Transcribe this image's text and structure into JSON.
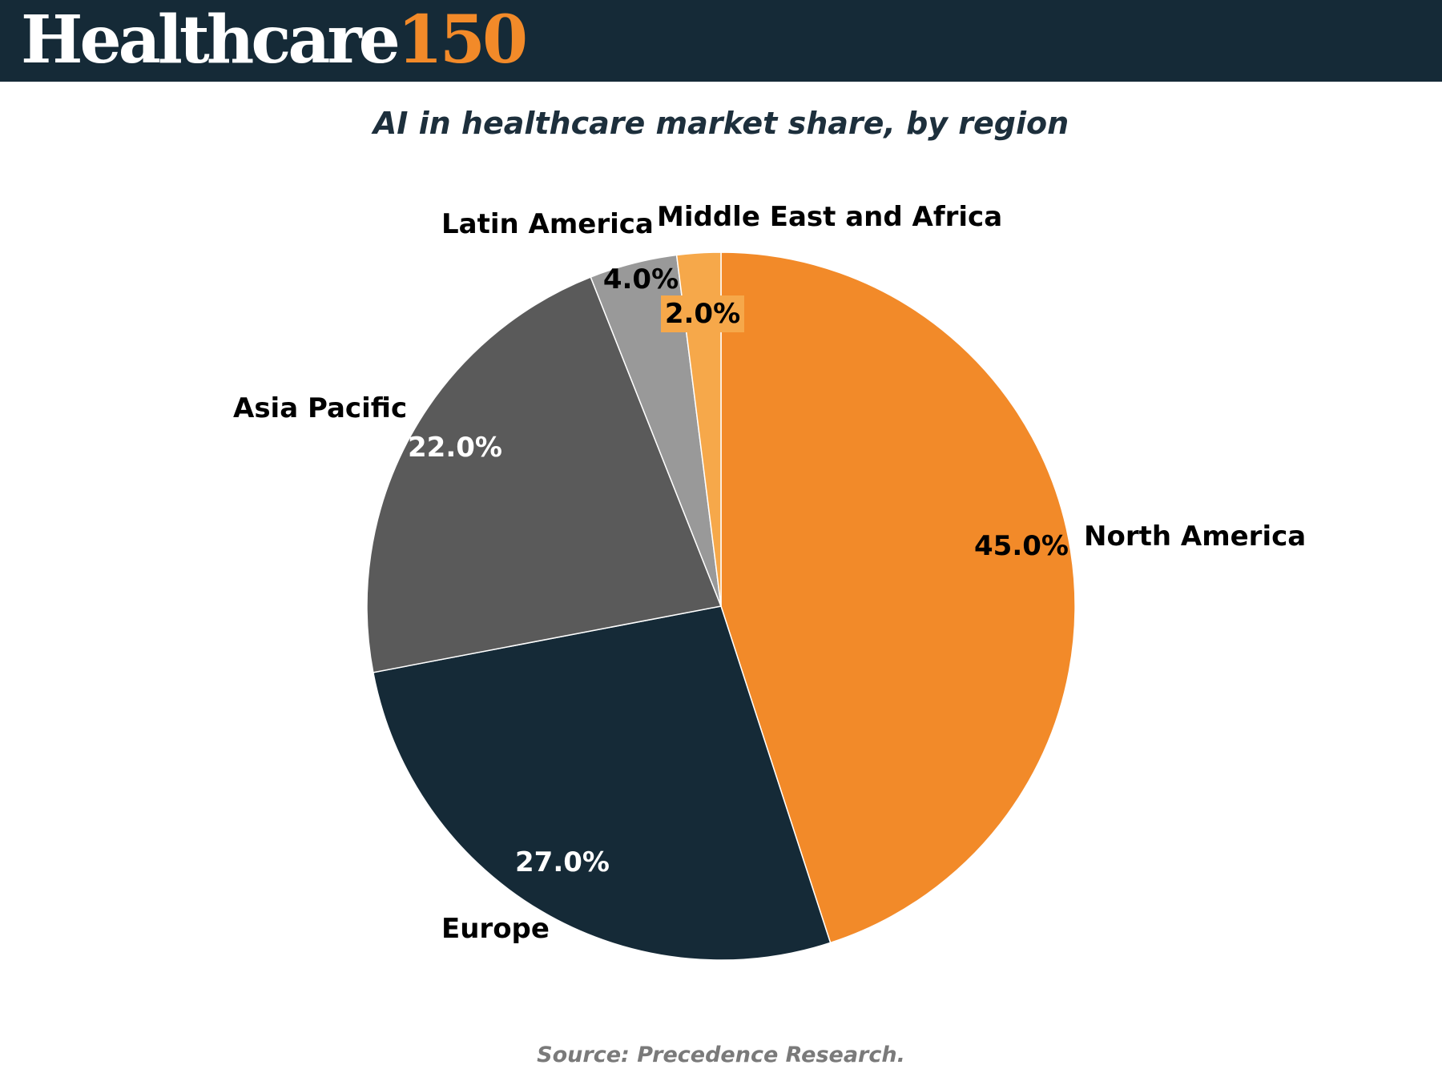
{
  "brand": {
    "word": "Healthcare",
    "number": "150"
  },
  "chart_data": {
    "type": "pie",
    "title": "AI in healthcare market share, by region",
    "start": "12 o'clock, clockwise",
    "slices": [
      {
        "name": "North America",
        "value": 45.0,
        "label": "45.0%",
        "color": "#f28a29",
        "label_color": "#000000"
      },
      {
        "name": "Europe",
        "value": 27.0,
        "label": "27.0%",
        "color": "#152a37",
        "label_color": "#ffffff"
      },
      {
        "name": "Asia Pacific",
        "value": 22.0,
        "label": "22.0%",
        "color": "#5a5a5a",
        "label_color": "#ffffff"
      },
      {
        "name": "Latin America",
        "value": 4.0,
        "label": "4.0%",
        "color": "#999999",
        "label_color": "#000000"
      },
      {
        "name": "Middle East and Africa",
        "value": 2.0,
        "label": "2.0%",
        "color": "#f6a84a",
        "label_color": "#000000"
      }
    ]
  },
  "source": "Source: Precedence Research."
}
